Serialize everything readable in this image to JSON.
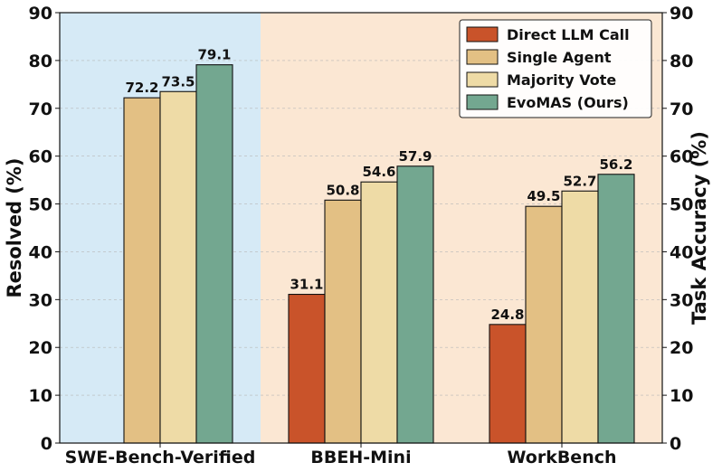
{
  "chart_data": {
    "type": "bar",
    "categories": [
      "SWE-Bench-Verified",
      "BBEH-Mini",
      "WorkBench"
    ],
    "series": [
      {
        "name": "Direct LLM Call",
        "color": "#c9532a",
        "values": [
          null,
          31.1,
          24.8
        ]
      },
      {
        "name": "Single Agent",
        "color": "#e3c084",
        "values": [
          72.2,
          50.8,
          49.5
        ]
      },
      {
        "name": "Majority Vote",
        "color": "#eedba6",
        "values": [
          73.5,
          54.6,
          52.7
        ]
      },
      {
        "name": "EvoMAS (Ours)",
        "color": "#73a790",
        "values": [
          79.1,
          57.9,
          56.2
        ]
      }
    ],
    "data_labels": [
      [
        "",
        "72.2",
        "73.5",
        "79.1"
      ],
      [
        "31.1",
        "50.8",
        "54.6",
        "57.9"
      ],
      [
        "24.8",
        "49.5",
        "52.7",
        "56.2"
      ]
    ],
    "ylabel_left": "Resolved (%)",
    "ylabel_right": "Task Accuracy (%)",
    "ylim": [
      0,
      90
    ],
    "yticks": [
      "0",
      "10",
      "20",
      "30",
      "40",
      "50",
      "60",
      "70",
      "80",
      "90"
    ],
    "grid": true,
    "legend_position": "top-right",
    "background_regions": [
      {
        "name": "swe-region",
        "color": "#d6eaf6"
      },
      {
        "name": "other-region",
        "color": "#fbe7d3"
      }
    ]
  }
}
